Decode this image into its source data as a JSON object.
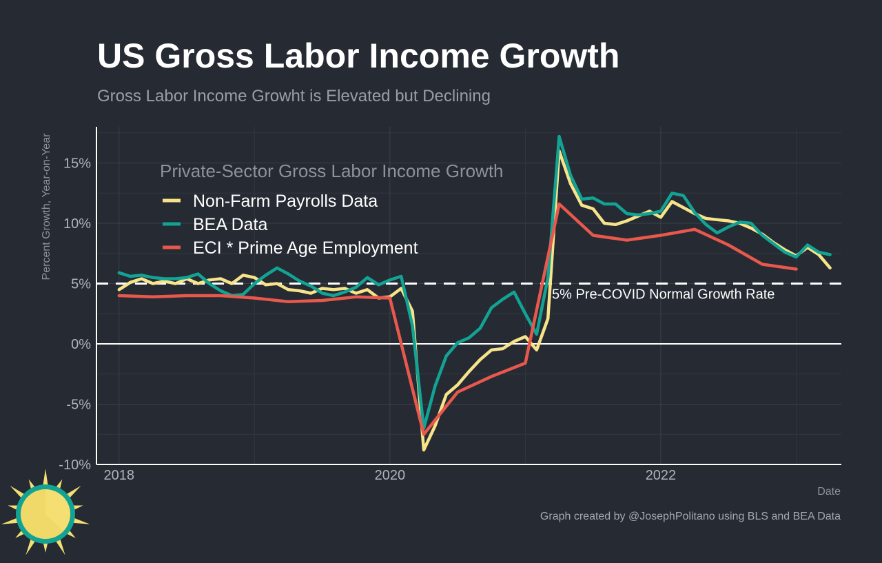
{
  "chart_data": {
    "type": "line",
    "title": "US Gross Labor Income Growth",
    "subtitle": "Gross Labor Income Growht is Elevated but Declining",
    "xlabel": "Date",
    "ylabel": "Percent Growth, Year-on-Year",
    "xlim": [
      "2017-11",
      "2023-05"
    ],
    "ylim": [
      -10,
      18
    ],
    "x_ticks": [
      {
        "value": "2018-01",
        "label": "2018"
      },
      {
        "value": "2020-01",
        "label": "2020"
      },
      {
        "value": "2022-01",
        "label": "2022"
      }
    ],
    "y_ticks": [
      {
        "value": 15,
        "label": "15%"
      },
      {
        "value": 10,
        "label": "10%"
      },
      {
        "value": 5,
        "label": "5%"
      },
      {
        "value": 0,
        "label": "0%"
      },
      {
        "value": -5,
        "label": "-5%"
      },
      {
        "value": -10,
        "label": "-10%"
      }
    ],
    "grid": true,
    "legend": {
      "title": "Private-Sector Gross Labor Income Growth",
      "position": "top-left"
    },
    "reference_lines": [
      {
        "y": 0,
        "style": "solid",
        "color": "#ffffff"
      },
      {
        "y": 5,
        "style": "dashed",
        "color": "#ffffff",
        "label": "5% Pre-COVID Normal Growth Rate"
      }
    ],
    "series": [
      {
        "name": "Non-Farm Payrolls Data",
        "color": "#f7e48a",
        "points": [
          [
            "2018-01",
            4.5
          ],
          [
            "2018-02",
            5.1
          ],
          [
            "2018-03",
            5.4
          ],
          [
            "2018-04",
            5.0
          ],
          [
            "2018-05",
            5.2
          ],
          [
            "2018-06",
            5.0
          ],
          [
            "2018-07",
            5.4
          ],
          [
            "2018-08",
            5.0
          ],
          [
            "2018-09",
            5.3
          ],
          [
            "2018-10",
            5.4
          ],
          [
            "2018-11",
            5.0
          ],
          [
            "2018-12",
            5.7
          ],
          [
            "2019-01",
            5.5
          ],
          [
            "2019-02",
            4.9
          ],
          [
            "2019-03",
            5.0
          ],
          [
            "2019-04",
            4.5
          ],
          [
            "2019-05",
            4.4
          ],
          [
            "2019-06",
            4.2
          ],
          [
            "2019-07",
            4.6
          ],
          [
            "2019-08",
            4.5
          ],
          [
            "2019-09",
            4.6
          ],
          [
            "2019-10",
            4.2
          ],
          [
            "2019-11",
            4.5
          ],
          [
            "2019-12",
            3.8
          ],
          [
            "2020-01",
            3.9
          ],
          [
            "2020-02",
            4.6
          ],
          [
            "2020-03",
            2.7
          ],
          [
            "2020-04",
            -8.8
          ],
          [
            "2020-05",
            -6.8
          ],
          [
            "2020-06",
            -4.2
          ],
          [
            "2020-07",
            -3.4
          ],
          [
            "2020-08",
            -2.3
          ],
          [
            "2020-09",
            -1.3
          ],
          [
            "2020-10",
            -0.5
          ],
          [
            "2020-11",
            -0.4
          ],
          [
            "2020-12",
            0.2
          ],
          [
            "2021-01",
            0.6
          ],
          [
            "2021-02",
            -0.5
          ],
          [
            "2021-03",
            2.1
          ],
          [
            "2021-04",
            16.0
          ],
          [
            "2021-05",
            13.3
          ],
          [
            "2021-06",
            11.5
          ],
          [
            "2021-07",
            11.2
          ],
          [
            "2021-08",
            10.0
          ],
          [
            "2021-09",
            9.9
          ],
          [
            "2021-10",
            10.2
          ],
          [
            "2021-11",
            10.6
          ],
          [
            "2021-12",
            11.0
          ],
          [
            "2022-01",
            10.5
          ],
          [
            "2022-02",
            11.8
          ],
          [
            "2022-03",
            11.3
          ],
          [
            "2022-04",
            10.8
          ],
          [
            "2022-05",
            10.4
          ],
          [
            "2022-06",
            10.3
          ],
          [
            "2022-07",
            10.2
          ],
          [
            "2022-08",
            10.0
          ],
          [
            "2022-09",
            9.6
          ],
          [
            "2022-10",
            9.1
          ],
          [
            "2022-11",
            8.4
          ],
          [
            "2022-12",
            7.8
          ],
          [
            "2023-01",
            7.3
          ],
          [
            "2023-02",
            8.0
          ],
          [
            "2023-03",
            7.4
          ],
          [
            "2023-04",
            6.3
          ]
        ]
      },
      {
        "name": "BEA Data",
        "color": "#12a394",
        "points": [
          [
            "2018-01",
            5.9
          ],
          [
            "2018-02",
            5.6
          ],
          [
            "2018-03",
            5.7
          ],
          [
            "2018-04",
            5.5
          ],
          [
            "2018-05",
            5.4
          ],
          [
            "2018-06",
            5.4
          ],
          [
            "2018-07",
            5.5
          ],
          [
            "2018-08",
            5.8
          ],
          [
            "2018-09",
            5.0
          ],
          [
            "2018-10",
            4.4
          ],
          [
            "2018-11",
            4.0
          ],
          [
            "2018-12",
            4.1
          ],
          [
            "2019-01",
            5.0
          ],
          [
            "2019-02",
            5.7
          ],
          [
            "2019-03",
            6.3
          ],
          [
            "2019-04",
            5.8
          ],
          [
            "2019-05",
            5.2
          ],
          [
            "2019-06",
            4.8
          ],
          [
            "2019-07",
            4.2
          ],
          [
            "2019-08",
            4.0
          ],
          [
            "2019-09",
            4.3
          ],
          [
            "2019-10",
            4.7
          ],
          [
            "2019-11",
            5.5
          ],
          [
            "2019-12",
            4.9
          ],
          [
            "2020-01",
            5.3
          ],
          [
            "2020-02",
            5.6
          ],
          [
            "2020-03",
            1.5
          ],
          [
            "2020-04",
            -7.0
          ],
          [
            "2020-05",
            -3.5
          ],
          [
            "2020-06",
            -1.0
          ],
          [
            "2020-07",
            0.1
          ],
          [
            "2020-08",
            0.5
          ],
          [
            "2020-09",
            1.3
          ],
          [
            "2020-10",
            3.0
          ],
          [
            "2020-11",
            3.7
          ],
          [
            "2020-12",
            4.3
          ],
          [
            "2021-01",
            2.5
          ],
          [
            "2021-02",
            0.8
          ],
          [
            "2021-03",
            5.5
          ],
          [
            "2021-04",
            17.2
          ],
          [
            "2021-05",
            14.0
          ],
          [
            "2021-06",
            12.0
          ],
          [
            "2021-07",
            12.1
          ],
          [
            "2021-08",
            11.6
          ],
          [
            "2021-09",
            11.6
          ],
          [
            "2021-10",
            10.8
          ],
          [
            "2021-11",
            10.7
          ],
          [
            "2021-12",
            10.8
          ],
          [
            "2022-01",
            11.0
          ],
          [
            "2022-02",
            12.5
          ],
          [
            "2022-03",
            12.3
          ],
          [
            "2022-04",
            10.9
          ],
          [
            "2022-05",
            9.9
          ],
          [
            "2022-06",
            9.2
          ],
          [
            "2022-07",
            9.7
          ],
          [
            "2022-08",
            10.1
          ],
          [
            "2022-09",
            10.0
          ],
          [
            "2022-10",
            9.0
          ],
          [
            "2022-11",
            8.3
          ],
          [
            "2022-12",
            7.6
          ],
          [
            "2023-01",
            7.2
          ],
          [
            "2023-02",
            8.2
          ],
          [
            "2023-03",
            7.6
          ],
          [
            "2023-04",
            7.4
          ]
        ]
      },
      {
        "name": "ECI * Prime Age Employment",
        "color": "#e8584c",
        "points": [
          [
            "2018-01",
            4.0
          ],
          [
            "2018-04",
            3.9
          ],
          [
            "2018-07",
            4.0
          ],
          [
            "2018-10",
            4.0
          ],
          [
            "2019-01",
            3.8
          ],
          [
            "2019-04",
            3.5
          ],
          [
            "2019-07",
            3.6
          ],
          [
            "2019-10",
            3.9
          ],
          [
            "2020-01",
            3.8
          ],
          [
            "2020-04",
            -7.5
          ],
          [
            "2020-07",
            -4.0
          ],
          [
            "2020-10",
            -2.7
          ],
          [
            "2021-01",
            -1.6
          ],
          [
            "2021-04",
            11.6
          ],
          [
            "2021-07",
            9.0
          ],
          [
            "2021-10",
            8.6
          ],
          [
            "2022-01",
            9.0
          ],
          [
            "2022-04",
            9.5
          ],
          [
            "2022-07",
            8.2
          ],
          [
            "2022-10",
            6.6
          ],
          [
            "2023-01",
            6.2
          ]
        ]
      }
    ]
  },
  "caption": "Graph created by @JosephPolitano using BLS and BEA Data",
  "logo": {
    "name": "sun-logo",
    "colors": {
      "ring": "#12a394",
      "sun": "#f5df72",
      "rays": "#f5df72"
    }
  }
}
